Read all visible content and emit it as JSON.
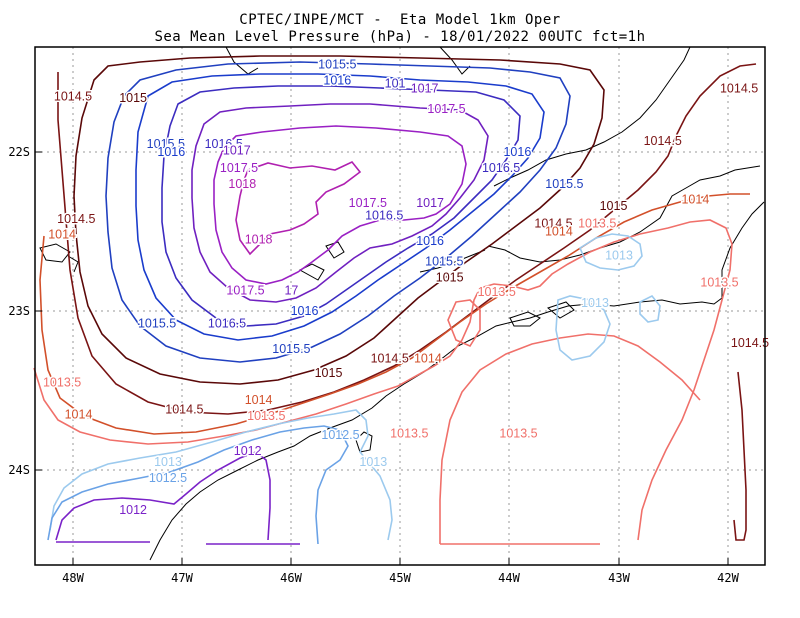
{
  "header": {
    "line1": "CPTEC/INPE/MCT -  Eta Model 1km Oper",
    "line2": "Sea Mean Level Pressure (hPa) - 18/01/2022 00UTC fct=1h"
  },
  "axes": {
    "x_ticks": [
      "48W",
      "47W",
      "46W",
      "45W",
      "44W",
      "43W",
      "42W"
    ],
    "y_ticks": [
      "22S",
      "23S",
      "24S"
    ]
  },
  "colors": {
    "1012": "#7a22c8",
    "1012.5": "#6aa2e6",
    "1013": "#9ccaee",
    "1013.5": "#f0706a",
    "1014": "#d2502a",
    "1014.5": "#7a1414",
    "1015": "#5a0808",
    "1015.5": "#2040c0",
    "1016": "#1a3ccc",
    "1016.5": "#3c2cc0",
    "1017": "#7020c0",
    "1017.5": "#9a20c4",
    "1018": "#b020b0"
  },
  "contour_labels": [
    {
      "text": "1014.5",
      "lon": -48.0,
      "lat": -21.65,
      "level": "1014.5"
    },
    {
      "text": "1015",
      "lon": -47.45,
      "lat": -21.66,
      "level": "1015"
    },
    {
      "text": "1015.5",
      "lon": -47.15,
      "lat": -21.95,
      "level": "1015.5"
    },
    {
      "text": "1016.5",
      "lon": -46.62,
      "lat": -21.95,
      "level": "1016.5"
    },
    {
      "text": "1016",
      "lon": -47.1,
      "lat": -22.0,
      "level": "1016"
    },
    {
      "text": "1017",
      "lon": -46.5,
      "lat": -21.99,
      "level": "1017"
    },
    {
      "text": "1017.5",
      "lon": -46.48,
      "lat": -22.1,
      "level": "1017.5"
    },
    {
      "text": "1015.5",
      "lon": -45.58,
      "lat": -21.45,
      "level": "1015.5"
    },
    {
      "text": "1016",
      "lon": -45.58,
      "lat": -21.55,
      "level": "1016"
    },
    {
      "text": "101",
      "lon": -45.05,
      "lat": -21.57,
      "level": "1016.5"
    },
    {
      "text": "1017",
      "lon": -44.78,
      "lat": -21.6,
      "level": "1017"
    },
    {
      "text": "1017.5",
      "lon": -44.58,
      "lat": -21.73,
      "level": "1017.5"
    },
    {
      "text": "1018",
      "lon": -46.45,
      "lat": -22.2,
      "level": "1018"
    },
    {
      "text": "1018",
      "lon": -46.3,
      "lat": -22.55,
      "level": "1018"
    },
    {
      "text": "1017.5",
      "lon": -45.3,
      "lat": -22.32,
      "level": "1017.5"
    },
    {
      "text": "1017",
      "lon": -44.73,
      "lat": -22.32,
      "level": "1017"
    },
    {
      "text": "1016.5",
      "lon": -45.15,
      "lat": -22.4,
      "level": "1016.5"
    },
    {
      "text": "1016",
      "lon": -44.73,
      "lat": -22.56,
      "level": "1016"
    },
    {
      "text": "1015.5",
      "lon": -44.6,
      "lat": -22.69,
      "level": "1015.5"
    },
    {
      "text": "1015",
      "lon": -44.55,
      "lat": -22.79,
      "level": "1015"
    },
    {
      "text": "1016",
      "lon": -43.93,
      "lat": -22.0,
      "level": "1016"
    },
    {
      "text": "1016.5",
      "lon": -44.08,
      "lat": -22.1,
      "level": "1016.5"
    },
    {
      "text": "1015.5",
      "lon": -43.5,
      "lat": -22.2,
      "level": "1015.5"
    },
    {
      "text": "1015",
      "lon": -43.05,
      "lat": -22.34,
      "level": "1015"
    },
    {
      "text": "1014.5",
      "lon": -42.6,
      "lat": -21.93,
      "level": "1014.5"
    },
    {
      "text": "1014.5",
      "lon": -41.9,
      "lat": -21.6,
      "level": "1014.5"
    },
    {
      "text": "1014",
      "lon": -42.3,
      "lat": -22.3,
      "level": "1014"
    },
    {
      "text": "1014.5",
      "lon": -43.6,
      "lat": -22.45,
      "level": "1014.5"
    },
    {
      "text": "1014",
      "lon": -43.55,
      "lat": -22.5,
      "level": "1014"
    },
    {
      "text": "1013.5",
      "lon": -43.2,
      "lat": -22.45,
      "level": "1013.5"
    },
    {
      "text": "1013",
      "lon": -43.0,
      "lat": -22.65,
      "level": "1013"
    },
    {
      "text": "1013.5",
      "lon": -42.08,
      "lat": -22.82,
      "level": "1013.5"
    },
    {
      "text": "1014.5",
      "lon": -41.8,
      "lat": -23.2,
      "level": "1014.5"
    },
    {
      "text": "1013.5",
      "lon": -44.12,
      "lat": -22.88,
      "level": "1013.5"
    },
    {
      "text": "1013",
      "lon": -43.22,
      "lat": -22.95,
      "level": "1013"
    },
    {
      "text": "1014.5",
      "lon": -47.97,
      "lat": -22.42,
      "level": "1014.5"
    },
    {
      "text": "1014",
      "lon": -48.1,
      "lat": -22.52,
      "level": "1014"
    },
    {
      "text": "1017.5",
      "lon": -46.42,
      "lat": -22.87,
      "level": "1017.5"
    },
    {
      "text": "17",
      "lon": -46.0,
      "lat": -22.87,
      "level": "1017"
    },
    {
      "text": "1016",
      "lon": -45.88,
      "lat": -23.0,
      "level": "1016"
    },
    {
      "text": "1015.5",
      "lon": -47.23,
      "lat": -23.08,
      "level": "1015.5"
    },
    {
      "text": "1016.5",
      "lon": -46.59,
      "lat": -23.08,
      "level": "1016.5"
    },
    {
      "text": "1015.5",
      "lon": -46.0,
      "lat": -23.24,
      "level": "1015.5"
    },
    {
      "text": "1015",
      "lon": -45.66,
      "lat": -23.39,
      "level": "1015"
    },
    {
      "text": "1014.5",
      "lon": -45.1,
      "lat": -23.3,
      "level": "1014.5"
    },
    {
      "text": "1014",
      "lon": -44.75,
      "lat": -23.3,
      "level": "1014"
    },
    {
      "text": "1013.5",
      "lon": -48.1,
      "lat": -23.45,
      "level": "1013.5"
    },
    {
      "text": "1014",
      "lon": -47.95,
      "lat": -23.65,
      "level": "1014"
    },
    {
      "text": "1014.5",
      "lon": -46.98,
      "lat": -23.62,
      "level": "1014.5"
    },
    {
      "text": "1014",
      "lon": -46.3,
      "lat": -23.56,
      "level": "1014"
    },
    {
      "text": "1013.5",
      "lon": -46.23,
      "lat": -23.66,
      "level": "1013.5"
    },
    {
      "text": "1013.5",
      "lon": -44.92,
      "lat": -23.77,
      "level": "1013.5"
    },
    {
      "text": "1013.5",
      "lon": -43.92,
      "lat": -23.77,
      "level": "1013.5"
    },
    {
      "text": "1012.5",
      "lon": -45.55,
      "lat": -23.78,
      "level": "1012.5"
    },
    {
      "text": "1013",
      "lon": -45.25,
      "lat": -23.95,
      "level": "1013"
    },
    {
      "text": "1012",
      "lon": -46.4,
      "lat": -23.88,
      "level": "1012"
    },
    {
      "text": "1013",
      "lon": -47.13,
      "lat": -23.95,
      "level": "1013"
    },
    {
      "text": "1012.5",
      "lon": -47.13,
      "lat": -24.05,
      "level": "1012.5"
    },
    {
      "text": "1012",
      "lon": -47.45,
      "lat": -24.25,
      "level": "1012"
    }
  ]
}
